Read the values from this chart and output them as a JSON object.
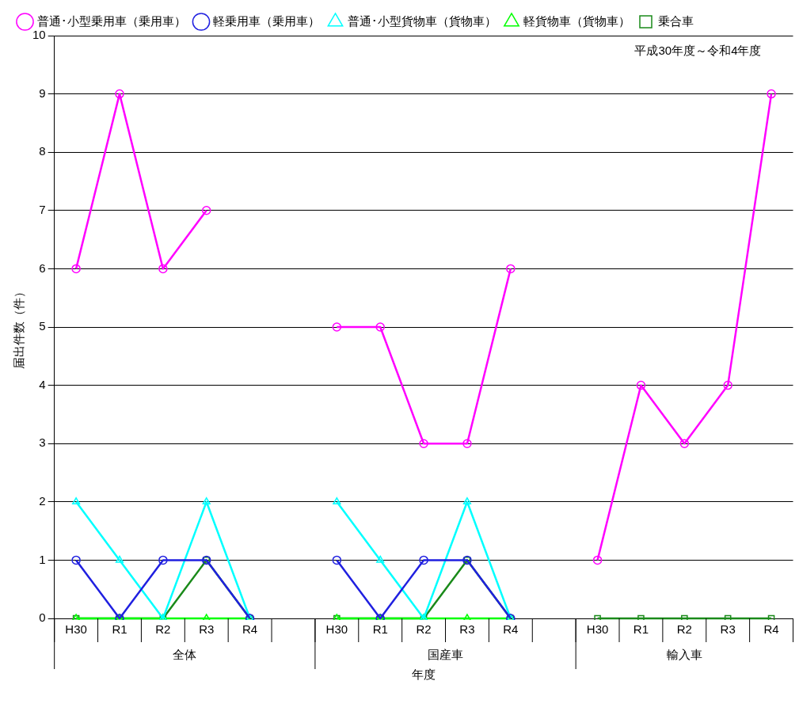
{
  "chart_data": {
    "type": "line",
    "ylabel": "届出件数（件）",
    "xlabel": "年度",
    "categories": [
      "H30",
      "R1",
      "R2",
      "R3",
      "R4",
      null,
      "H30",
      "R1",
      "R2",
      "R3",
      "R4",
      null,
      "H30",
      "R1",
      "R2",
      "R3",
      "R4"
    ],
    "annotations": [
      "平成30年度～令和4年度",
      "全体",
      "国産車",
      "輸入車"
    ],
    "ylim": [
      0,
      10
    ],
    "yticks": [
      0,
      1,
      2,
      3,
      4,
      5,
      6,
      7,
      8,
      9,
      10
    ],
    "grid": "y",
    "legend": "top",
    "series": [
      {
        "name": "普通･小型乗用車（乗用車）",
        "color": "#ff00ff",
        "marker": "circle",
        "values": [
          6,
          9,
          6,
          7,
          null,
          null,
          5,
          5,
          3,
          3,
          6,
          null,
          1,
          4,
          3,
          4,
          9
        ]
      },
      {
        "name": "軽乗用車（乗用車）",
        "color": "#2020e0",
        "marker": "circle",
        "values": [
          1,
          0,
          1,
          1,
          0,
          null,
          1,
          0,
          1,
          1,
          0,
          null,
          null,
          null,
          null,
          null,
          null
        ]
      },
      {
        "name": "普通･小型貨物車（貨物車）",
        "color": "#00ffff",
        "marker": "triangle",
        "values": [
          2,
          1,
          0,
          2,
          0,
          null,
          2,
          1,
          0,
          2,
          0,
          null,
          null,
          null,
          null,
          null,
          null
        ]
      },
      {
        "name": "軽貨物車（貨物車）",
        "color": "#00ff00",
        "marker": "triangle",
        "values": [
          0,
          0,
          0,
          0,
          0,
          null,
          0,
          0,
          0,
          0,
          0,
          null,
          null,
          null,
          null,
          null,
          null
        ]
      },
      {
        "name": "乗合車",
        "color": "#1a8a1a",
        "marker": "square",
        "values": [
          0,
          0,
          0,
          1,
          0,
          null,
          0,
          0,
          0,
          1,
          0,
          null,
          0,
          0,
          0,
          0,
          0
        ]
      }
    ]
  }
}
